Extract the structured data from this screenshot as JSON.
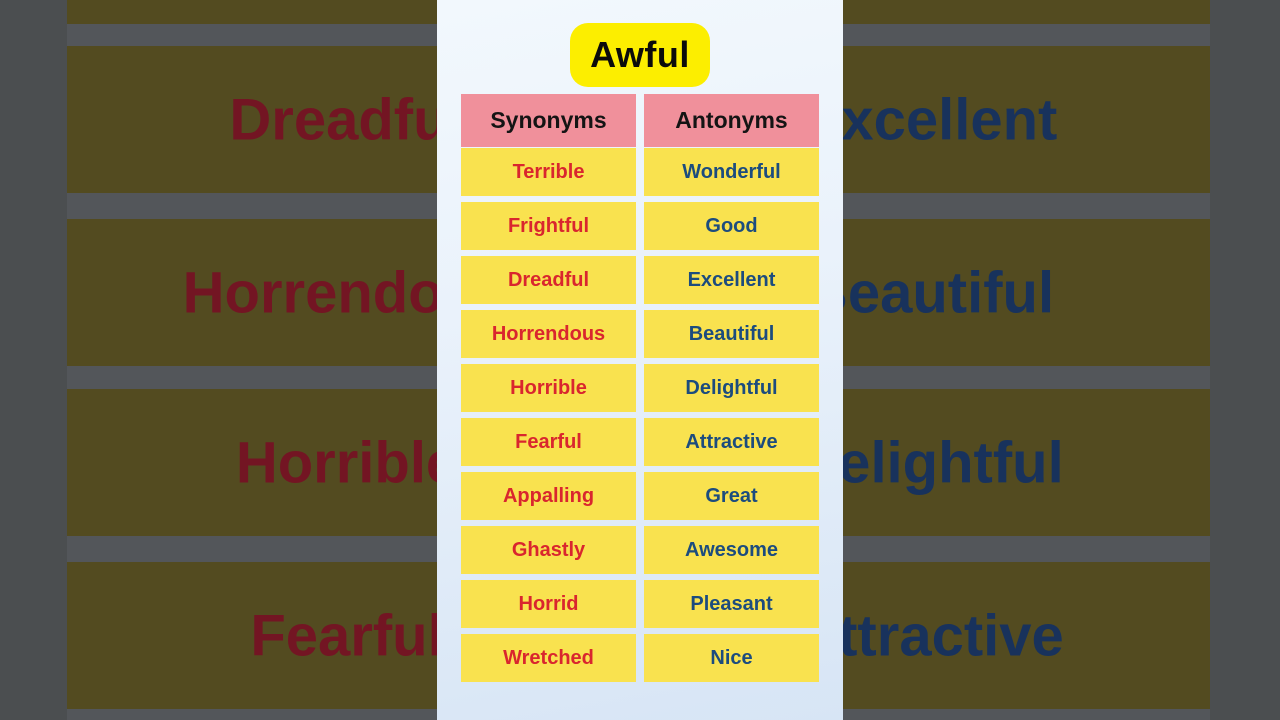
{
  "video": {
    "word": "Awful",
    "table": {
      "headers": {
        "synonyms": "Synonyms",
        "antonyms": "Antonyms"
      },
      "rows": [
        {
          "synonym": "Terrible",
          "antonym": "Wonderful"
        },
        {
          "synonym": "Frightful",
          "antonym": "Good"
        },
        {
          "synonym": "Dreadful",
          "antonym": "Excellent"
        },
        {
          "synonym": "Horrendous",
          "antonym": "Beautiful"
        },
        {
          "synonym": "Horrible",
          "antonym": "Delightful"
        },
        {
          "synonym": "Fearful",
          "antonym": "Attractive"
        },
        {
          "synonym": "Appalling",
          "antonym": "Great"
        },
        {
          "synonym": "Ghastly",
          "antonym": "Awesome"
        },
        {
          "synonym": "Horrid",
          "antonym": "Pleasant"
        },
        {
          "synonym": "Wretched",
          "antonym": "Nice"
        }
      ]
    },
    "background_bars": [
      {
        "left": "Dreadful",
        "right": "Excellent"
      },
      {
        "left": "Horrendous",
        "right": "Beautiful"
      },
      {
        "left": "Horrible",
        "right": "Delightful"
      },
      {
        "left": "Fearful",
        "right": "Attractive"
      }
    ],
    "colors": {
      "title_badge_yellow": "#fcee00",
      "header_pink": "#f0909b",
      "cell_yellow": "#f9e24f",
      "synonym_red": "#d9262e",
      "antonym_blue": "#1c4c7e",
      "backdrop_gray": "#53565a",
      "backdrop_bar_olive": "#534b20",
      "backdrop_text_red": "#731523",
      "backdrop_text_navy": "#18325c"
    }
  }
}
